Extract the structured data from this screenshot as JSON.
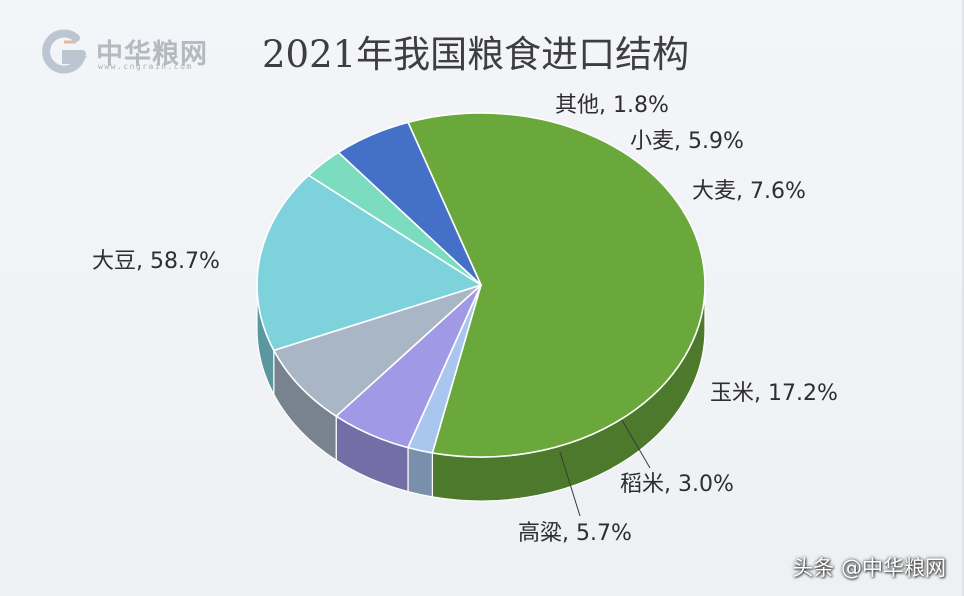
{
  "logo": {
    "name": "中华粮网",
    "url": "www.cngrain.com"
  },
  "watermark": "头条 @中华粮网",
  "chart_data": {
    "type": "pie",
    "title": "2021年我国粮食进口结构",
    "unit": "%",
    "slices": [
      {
        "name": "大豆",
        "value": 58.7,
        "label": "大豆, 58.7%",
        "color": "#6aa83c"
      },
      {
        "name": "其他",
        "value": 1.8,
        "label": "其他, 1.8%",
        "color": "#a9c6ee"
      },
      {
        "name": "小麦",
        "value": 5.9,
        "label": "小麦, 5.9%",
        "color": "#a09ae6"
      },
      {
        "name": "大麦",
        "value": 7.6,
        "label": "大麦, 7.6%",
        "color": "#a8b6c6"
      },
      {
        "name": "玉米",
        "value": 17.2,
        "label": "玉米, 17.2%",
        "color": "#7ed2dc"
      },
      {
        "name": "稻米",
        "value": 3.0,
        "label": "稻米, 3.0%",
        "color": "#7cdcc0"
      },
      {
        "name": "高粱",
        "value": 5.7,
        "label": "高粱, 5.7%",
        "color": "#4470c8"
      }
    ]
  }
}
